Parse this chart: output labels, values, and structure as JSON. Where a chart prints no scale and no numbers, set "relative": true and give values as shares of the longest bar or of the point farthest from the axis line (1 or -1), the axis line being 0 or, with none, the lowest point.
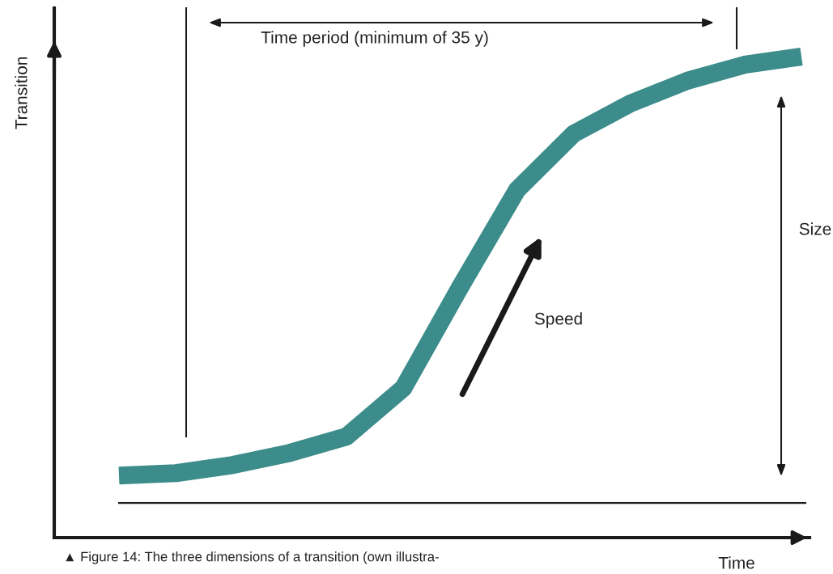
{
  "chart_data": {
    "type": "line",
    "relative": true,
    "xlabel": "Time",
    "ylabel": "Transition",
    "categories": [
      null,
      null,
      null,
      null,
      null,
      null,
      null,
      null,
      null,
      null,
      null,
      null,
      null
    ],
    "series": [
      {
        "color": "#3b8c8a",
        "values": [
          0.129,
          0.134,
          0.151,
          0.176,
          0.21,
          0.311,
          0.521,
          0.723,
          0.84,
          0.903,
          0.95,
          0.983,
          1.0
        ]
      }
    ],
    "line_style": "solid",
    "grid": false,
    "legend": false,
    "ref_lines": [
      {
        "axis": "y",
        "value": 0.072,
        "color": "#1a1a1a"
      }
    ],
    "annotations": [
      "Time period (minimum of 35 y)",
      "Size",
      "Speed",
      "▲ Figure 14: The three dimensions of a transition (own illustra-"
    ]
  }
}
